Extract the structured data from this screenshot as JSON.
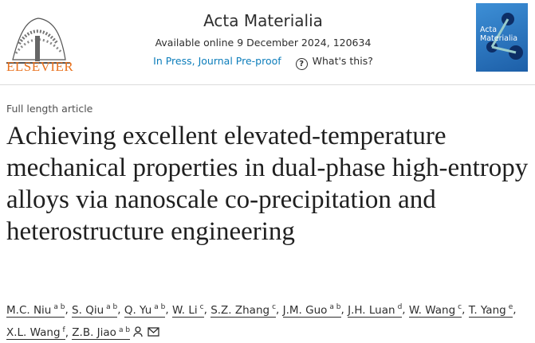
{
  "header": {
    "publisher": "ELSEVIER",
    "journal": "Acta Materialia",
    "availability": "Available online 9 December 2024, 120634",
    "status": "In Press, Journal Pre-proof",
    "help": "What's this?"
  },
  "article": {
    "type": "Full length article",
    "title": "Achieving excellent elevated-temperature mechanical properties in dual-phase high-entropy alloys via nanoscale co-precipitation and heterostructure engineering",
    "authors": [
      {
        "name": "M.C. Niu",
        "aff": "a b"
      },
      {
        "name": "S. Qiu",
        "aff": "a b"
      },
      {
        "name": "Q. Yu",
        "aff": "a b"
      },
      {
        "name": "W. Li",
        "aff": "c"
      },
      {
        "name": "S.Z. Zhang",
        "aff": "c"
      },
      {
        "name": "J.M. Guo",
        "aff": "a b"
      },
      {
        "name": "J.H. Luan",
        "aff": "d"
      },
      {
        "name": "W. Wang",
        "aff": "c"
      },
      {
        "name": "T. Yang",
        "aff": "e"
      },
      {
        "name": "X.L. Wang",
        "aff": "f"
      },
      {
        "name": "Z.B. Jiao",
        "aff": "a b"
      }
    ]
  }
}
